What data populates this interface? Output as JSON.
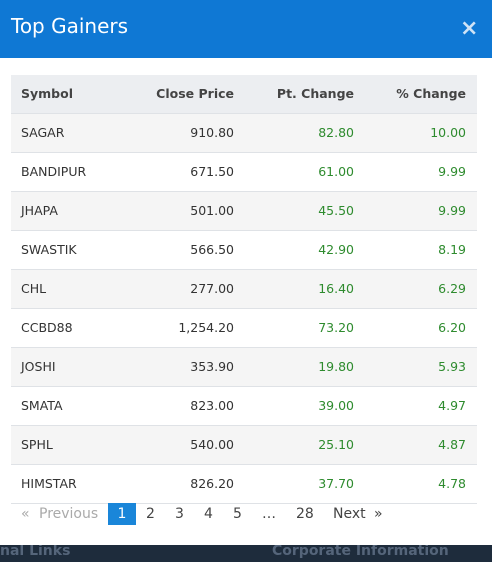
{
  "header": {
    "title": "Top Gainers",
    "close": "×"
  },
  "table": {
    "columns": [
      "Symbol",
      "Close Price",
      "Pt. Change",
      "% Change"
    ],
    "rows": [
      [
        "SAGAR",
        "910.80",
        "82.80",
        "10.00"
      ],
      [
        "BANDIPUR",
        "671.50",
        "61.00",
        "9.99"
      ],
      [
        "JHAPA",
        "501.00",
        "45.50",
        "9.99"
      ],
      [
        "SWASTIK",
        "566.50",
        "42.90",
        "8.19"
      ],
      [
        "CHL",
        "277.00",
        "16.40",
        "6.29"
      ],
      [
        "CCBD88",
        "1,254.20",
        "73.20",
        "6.20"
      ],
      [
        "JOSHI",
        "353.90",
        "19.80",
        "5.93"
      ],
      [
        "SMATA",
        "823.00",
        "39.00",
        "4.97"
      ],
      [
        "SPHL",
        "540.00",
        "25.10",
        "4.87"
      ],
      [
        "HIMSTAR",
        "826.20",
        "37.70",
        "4.78"
      ]
    ]
  },
  "pagination": {
    "first": "«",
    "previous": "Previous",
    "pages": [
      "1",
      "2",
      "3",
      "4",
      "5",
      "…",
      "28"
    ],
    "next": "Next",
    "last": "»"
  },
  "footer": {
    "left": "nal Links",
    "right": "Corporate Information"
  }
}
